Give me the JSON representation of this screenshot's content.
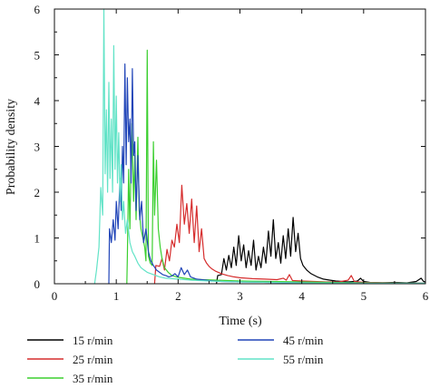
{
  "chart_data": {
    "type": "line",
    "title": "",
    "xlabel": "Time (s)",
    "ylabel": "Probability density",
    "xlim": [
      0,
      6
    ],
    "ylim": [
      0,
      6
    ],
    "xticks": [
      "0",
      "1",
      "2",
      "3",
      "4",
      "5",
      "6"
    ],
    "yticks": [
      "0",
      "1",
      "2",
      "3",
      "4",
      "5",
      "6"
    ],
    "grid": false,
    "legend_position": "bottom",
    "series": [
      {
        "name": "15 r/min",
        "color": "#000000",
        "points": [
          [
            2.62,
            0.0
          ],
          [
            2.64,
            0.18
          ],
          [
            2.7,
            0.2
          ],
          [
            2.74,
            0.55
          ],
          [
            2.78,
            0.3
          ],
          [
            2.82,
            0.62
          ],
          [
            2.86,
            0.35
          ],
          [
            2.9,
            0.8
          ],
          [
            2.94,
            0.4
          ],
          [
            2.98,
            1.05
          ],
          [
            3.02,
            0.5
          ],
          [
            3.06,
            0.85
          ],
          [
            3.1,
            0.35
          ],
          [
            3.14,
            0.72
          ],
          [
            3.18,
            0.4
          ],
          [
            3.22,
            0.95
          ],
          [
            3.26,
            0.3
          ],
          [
            3.3,
            0.6
          ],
          [
            3.34,
            0.35
          ],
          [
            3.38,
            0.8
          ],
          [
            3.42,
            0.45
          ],
          [
            3.46,
            1.15
          ],
          [
            3.5,
            0.6
          ],
          [
            3.54,
            1.4
          ],
          [
            3.58,
            0.55
          ],
          [
            3.62,
            0.9
          ],
          [
            3.66,
            0.45
          ],
          [
            3.7,
            1.05
          ],
          [
            3.74,
            0.55
          ],
          [
            3.78,
            1.2
          ],
          [
            3.82,
            0.6
          ],
          [
            3.86,
            1.45
          ],
          [
            3.9,
            0.7
          ],
          [
            3.94,
            1.1
          ],
          [
            3.98,
            0.55
          ],
          [
            4.02,
            0.4
          ],
          [
            4.08,
            0.3
          ],
          [
            4.15,
            0.22
          ],
          [
            4.25,
            0.15
          ],
          [
            4.35,
            0.1
          ],
          [
            4.45,
            0.08
          ],
          [
            4.55,
            0.06
          ],
          [
            4.65,
            0.05
          ],
          [
            4.75,
            0.04
          ],
          [
            4.85,
            0.05
          ],
          [
            4.9,
            0.06
          ],
          [
            4.95,
            0.12
          ],
          [
            5.0,
            0.05
          ],
          [
            5.1,
            0.03
          ],
          [
            5.3,
            0.02
          ],
          [
            5.5,
            0.03
          ],
          [
            5.7,
            0.02
          ],
          [
            5.85,
            0.05
          ],
          [
            5.93,
            0.12
          ],
          [
            5.97,
            0.05
          ],
          [
            6.0,
            0.04
          ]
        ]
      },
      {
        "name": "25 r/min",
        "color": "#d62d2d",
        "points": [
          [
            1.62,
            0.0
          ],
          [
            1.64,
            0.4
          ],
          [
            1.7,
            0.38
          ],
          [
            1.74,
            0.55
          ],
          [
            1.78,
            0.3
          ],
          [
            1.82,
            0.75
          ],
          [
            1.86,
            0.5
          ],
          [
            1.9,
            0.95
          ],
          [
            1.94,
            0.8
          ],
          [
            1.98,
            1.3
          ],
          [
            2.02,
            0.9
          ],
          [
            2.06,
            2.15
          ],
          [
            2.1,
            1.3
          ],
          [
            2.14,
            1.75
          ],
          [
            2.18,
            1.1
          ],
          [
            2.22,
            1.85
          ],
          [
            2.26,
            0.9
          ],
          [
            2.3,
            1.7
          ],
          [
            2.34,
            0.7
          ],
          [
            2.38,
            1.2
          ],
          [
            2.42,
            0.55
          ],
          [
            2.46,
            0.45
          ],
          [
            2.5,
            0.38
          ],
          [
            2.55,
            0.32
          ],
          [
            2.6,
            0.28
          ],
          [
            2.7,
            0.22
          ],
          [
            2.8,
            0.18
          ],
          [
            2.9,
            0.15
          ],
          [
            3.0,
            0.13
          ],
          [
            3.2,
            0.11
          ],
          [
            3.4,
            0.1
          ],
          [
            3.6,
            0.09
          ],
          [
            3.7,
            0.12
          ],
          [
            3.75,
            0.08
          ],
          [
            3.8,
            0.2
          ],
          [
            3.85,
            0.07
          ],
          [
            4.0,
            0.06
          ],
          [
            4.2,
            0.05
          ],
          [
            4.4,
            0.04
          ],
          [
            4.6,
            0.04
          ],
          [
            4.75,
            0.08
          ],
          [
            4.8,
            0.18
          ],
          [
            4.85,
            0.05
          ],
          [
            5.0,
            0.03
          ],
          [
            5.5,
            0.02
          ],
          [
            6.0,
            0.01
          ]
        ]
      },
      {
        "name": "35 r/min",
        "color": "#3bcf2f",
        "points": [
          [
            1.17,
            0.0
          ],
          [
            1.18,
            0.6
          ],
          [
            1.2,
            2.5
          ],
          [
            1.22,
            1.2
          ],
          [
            1.25,
            3.5
          ],
          [
            1.28,
            1.8
          ],
          [
            1.3,
            2.8
          ],
          [
            1.32,
            1.4
          ],
          [
            1.35,
            3.2
          ],
          [
            1.37,
            1.6
          ],
          [
            1.4,
            1.2
          ],
          [
            1.43,
            1.0
          ],
          [
            1.46,
            0.8
          ],
          [
            1.48,
            0.5
          ],
          [
            1.5,
            5.1
          ],
          [
            1.52,
            0.6
          ],
          [
            1.55,
            0.45
          ],
          [
            1.58,
            0.4
          ],
          [
            1.6,
            3.1
          ],
          [
            1.62,
            1.5
          ],
          [
            1.65,
            2.7
          ],
          [
            1.68,
            1.2
          ],
          [
            1.71,
            0.8
          ],
          [
            1.74,
            0.55
          ],
          [
            1.78,
            0.35
          ],
          [
            1.84,
            0.25
          ],
          [
            1.9,
            0.18
          ],
          [
            2.0,
            0.14
          ],
          [
            2.1,
            0.12
          ],
          [
            2.2,
            0.1
          ],
          [
            2.4,
            0.09
          ],
          [
            2.6,
            0.08
          ],
          [
            2.8,
            0.07
          ],
          [
            3.0,
            0.06
          ],
          [
            3.5,
            0.05
          ],
          [
            4.0,
            0.04
          ],
          [
            4.5,
            0.03
          ],
          [
            5.0,
            0.02
          ],
          [
            6.0,
            0.01
          ]
        ]
      },
      {
        "name": "45 r/min",
        "color": "#2145b8",
        "points": [
          [
            0.88,
            0.0
          ],
          [
            0.89,
            1.2
          ],
          [
            0.92,
            0.9
          ],
          [
            0.95,
            1.4
          ],
          [
            0.98,
            0.95
          ],
          [
            1.0,
            1.8
          ],
          [
            1.03,
            1.2
          ],
          [
            1.06,
            2.3
          ],
          [
            1.08,
            1.6
          ],
          [
            1.1,
            3.0
          ],
          [
            1.12,
            2.2
          ],
          [
            1.14,
            4.8
          ],
          [
            1.16,
            2.6
          ],
          [
            1.18,
            4.5
          ],
          [
            1.2,
            3.1
          ],
          [
            1.22,
            3.6
          ],
          [
            1.24,
            2.2
          ],
          [
            1.26,
            4.7
          ],
          [
            1.28,
            2.8
          ],
          [
            1.3,
            3.1
          ],
          [
            1.32,
            1.6
          ],
          [
            1.35,
            2.8
          ],
          [
            1.38,
            1.4
          ],
          [
            1.41,
            1.8
          ],
          [
            1.44,
            0.9
          ],
          [
            1.48,
            1.2
          ],
          [
            1.52,
            0.7
          ],
          [
            1.56,
            0.5
          ],
          [
            1.6,
            0.4
          ],
          [
            1.65,
            0.3
          ],
          [
            1.7,
            0.25
          ],
          [
            1.75,
            0.2
          ],
          [
            1.8,
            0.18
          ],
          [
            1.85,
            0.15
          ],
          [
            1.9,
            0.17
          ],
          [
            1.95,
            0.22
          ],
          [
            2.0,
            0.15
          ],
          [
            2.05,
            0.35
          ],
          [
            2.1,
            0.2
          ],
          [
            2.15,
            0.3
          ],
          [
            2.2,
            0.15
          ],
          [
            2.3,
            0.1
          ],
          [
            2.5,
            0.07
          ],
          [
            2.7,
            0.05
          ],
          [
            3.0,
            0.04
          ],
          [
            3.5,
            0.03
          ],
          [
            4.0,
            0.02
          ],
          [
            5.0,
            0.01
          ],
          [
            6.0,
            0.01
          ]
        ]
      },
      {
        "name": "55 r/min",
        "color": "#62e3c7",
        "points": [
          [
            0.65,
            0.0
          ],
          [
            0.68,
            0.3
          ],
          [
            0.72,
            0.8
          ],
          [
            0.75,
            2.1
          ],
          [
            0.78,
            1.5
          ],
          [
            0.8,
            6.0
          ],
          [
            0.82,
            2.4
          ],
          [
            0.84,
            3.8
          ],
          [
            0.86,
            2.0
          ],
          [
            0.88,
            4.4
          ],
          [
            0.9,
            2.3
          ],
          [
            0.92,
            3.6
          ],
          [
            0.94,
            2.0
          ],
          [
            0.96,
            5.2
          ],
          [
            0.98,
            2.5
          ],
          [
            1.0,
            4.1
          ],
          [
            1.02,
            2.2
          ],
          [
            1.04,
            3.3
          ],
          [
            1.06,
            1.8
          ],
          [
            1.08,
            2.6
          ],
          [
            1.1,
            1.4
          ],
          [
            1.12,
            1.8
          ],
          [
            1.15,
            1.1
          ],
          [
            1.18,
            1.4
          ],
          [
            1.22,
            0.9
          ],
          [
            1.26,
            0.7
          ],
          [
            1.3,
            0.6
          ],
          [
            1.35,
            0.45
          ],
          [
            1.4,
            0.35
          ],
          [
            1.45,
            0.3
          ],
          [
            1.5,
            0.25
          ],
          [
            1.6,
            0.2
          ],
          [
            1.7,
            0.15
          ],
          [
            1.8,
            0.12
          ],
          [
            2.0,
            0.1
          ],
          [
            2.2,
            0.08
          ],
          [
            2.5,
            0.06
          ],
          [
            3.0,
            0.04
          ],
          [
            3.5,
            0.03
          ],
          [
            4.0,
            0.02
          ],
          [
            5.0,
            0.01
          ],
          [
            6.0,
            0.01
          ]
        ]
      }
    ]
  }
}
